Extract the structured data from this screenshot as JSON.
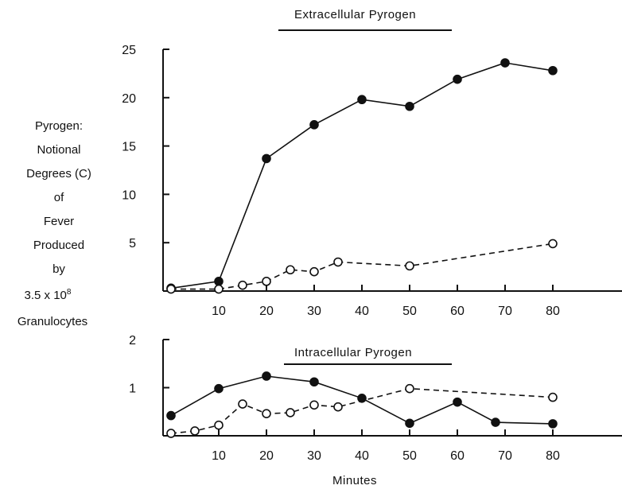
{
  "ylabel_lines": [
    "Pyrogen:",
    "Notional",
    "Degrees (C)",
    "of",
    "Fever",
    "Produced",
    "by",
    "3.5 x 10",
    "Granulocytes"
  ],
  "ylabel_superscript": "8",
  "xlabel": "Minutes",
  "chart_data": [
    {
      "type": "line",
      "title": "Extracellular Pyrogen",
      "xlabel": "Minutes",
      "ylabel": "Pyrogen: Notional Degrees (C) of Fever Produced by 3.5 x 10^8 Granulocytes",
      "xlim": [
        0,
        90
      ],
      "ylim": [
        0,
        25
      ],
      "xticks": [
        10,
        20,
        30,
        40,
        50,
        60,
        70,
        80
      ],
      "yticks": [
        5,
        10,
        15,
        20,
        25
      ],
      "grid": false,
      "series": [
        {
          "marker": "filled-circle",
          "line": "solid",
          "color": "#111111",
          "points": [
            [
              0,
              0.3
            ],
            [
              10,
              1.0
            ],
            [
              20,
              13.7
            ],
            [
              30,
              17.2
            ],
            [
              40,
              19.8
            ],
            [
              50,
              19.1
            ],
            [
              60,
              21.9
            ],
            [
              70,
              23.6
            ],
            [
              80,
              22.8
            ]
          ]
        },
        {
          "marker": "open-circle",
          "line": "dashed",
          "color": "#111111",
          "points": [
            [
              0,
              0.2
            ],
            [
              10,
              0.2
            ],
            [
              15,
              0.6
            ],
            [
              20,
              1.0
            ],
            [
              25,
              2.2
            ],
            [
              30,
              2.0
            ],
            [
              35,
              3.0
            ],
            [
              50,
              2.6
            ],
            [
              80,
              4.9
            ]
          ]
        }
      ]
    },
    {
      "type": "line",
      "title": "Intracellular Pyrogen",
      "xlabel": "Minutes",
      "xlim": [
        0,
        90
      ],
      "ylim": [
        0,
        2
      ],
      "xticks": [
        10,
        20,
        30,
        40,
        50,
        60,
        70,
        80
      ],
      "yticks": [
        1,
        2
      ],
      "grid": false,
      "series": [
        {
          "marker": "filled-circle",
          "line": "solid",
          "color": "#111111",
          "points": [
            [
              0,
              0.42
            ],
            [
              10,
              0.98
            ],
            [
              20,
              1.24
            ],
            [
              30,
              1.12
            ],
            [
              40,
              0.78
            ],
            [
              50,
              0.26
            ],
            [
              60,
              0.7
            ],
            [
              68,
              0.28
            ],
            [
              80,
              0.25
            ]
          ]
        },
        {
          "marker": "open-circle",
          "line": "dashed",
          "color": "#111111",
          "points": [
            [
              0,
              0.05
            ],
            [
              5,
              0.1
            ],
            [
              10,
              0.22
            ],
            [
              15,
              0.66
            ],
            [
              20,
              0.46
            ],
            [
              25,
              0.48
            ],
            [
              30,
              0.64
            ],
            [
              35,
              0.6
            ],
            [
              50,
              0.98
            ],
            [
              80,
              0.8
            ]
          ]
        }
      ]
    }
  ]
}
